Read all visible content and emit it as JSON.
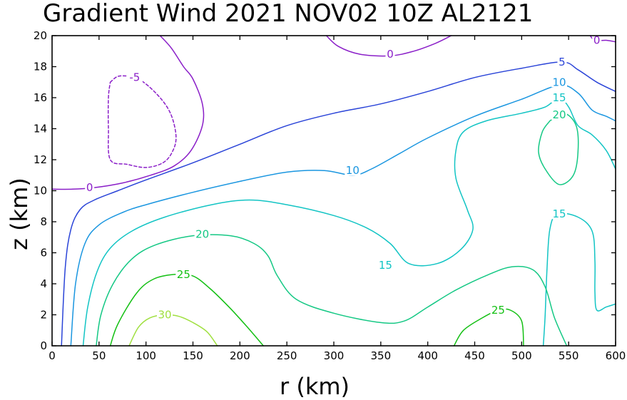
{
  "chart_data": {
    "type": "contour",
    "title": "Gradient Wind 2021 NOV02 10Z  AL2121",
    "xlabel": "r (km)",
    "ylabel": "z (km)",
    "xlim": [
      0,
      600
    ],
    "ylim": [
      0,
      20
    ],
    "xticks": [
      "0",
      "50",
      "100",
      "150",
      "200",
      "250",
      "300",
      "350",
      "400",
      "450",
      "500",
      "550",
      "600"
    ],
    "yticks": [
      "0",
      "2",
      "4",
      "6",
      "8",
      "10",
      "12",
      "14",
      "16",
      "18",
      "20"
    ],
    "grid": false,
    "colors": {
      "level_-5": "#8a1ec8",
      "level_0": "#8a1ec8",
      "level_5": "#2a44d8",
      "level_10": "#1a96e0",
      "level_15": "#12c4c4",
      "level_20": "#14c884",
      "level_25": "#14c014",
      "level_30": "#a0e040"
    },
    "contours": [
      {
        "level": -5,
        "label": "-5",
        "dashed": true,
        "color_key": "level_-5",
        "label_at": [
          88,
          17.3
        ],
        "points": [
          [
            62,
            17.0
          ],
          [
            72,
            17.4
          ],
          [
            92,
            17.2
          ],
          [
            112,
            16.2
          ],
          [
            126,
            15.0
          ],
          [
            132,
            13.5
          ],
          [
            128,
            12.5
          ],
          [
            118,
            11.8
          ],
          [
            100,
            11.5
          ],
          [
            80,
            11.7
          ],
          [
            62,
            12.0
          ],
          [
            60,
            14.0
          ],
          [
            60,
            16.0
          ],
          [
            62,
            17.0
          ]
        ]
      },
      {
        "level": 0,
        "label": "0",
        "dashed": false,
        "color_key": "level_0",
        "label_at": [
          40,
          10.2
        ],
        "points": [
          [
            0,
            10.1
          ],
          [
            22,
            10.1
          ],
          [
            45,
            10.2
          ],
          [
            75,
            10.5
          ],
          [
            105,
            11.0
          ],
          [
            130,
            11.6
          ],
          [
            148,
            12.6
          ],
          [
            160,
            14.2
          ],
          [
            160,
            15.6
          ],
          [
            150,
            17.2
          ],
          [
            140,
            18.0
          ],
          [
            127,
            19.2
          ],
          [
            115,
            20.0
          ]
        ]
      },
      {
        "level": 0,
        "label": "0",
        "dashed": false,
        "color_key": "level_0",
        "label_at": [
          360,
          18.8
        ],
        "points": [
          [
            292,
            20.0
          ],
          [
            305,
            19.3
          ],
          [
            328,
            18.8
          ],
          [
            360,
            18.7
          ],
          [
            385,
            19.0
          ],
          [
            408,
            19.5
          ],
          [
            425,
            20.0
          ]
        ]
      },
      {
        "level": 0,
        "label": "0",
        "dashed": false,
        "color_key": "level_0",
        "label_at": [
          580,
          19.7
        ],
        "points": [
          [
            573,
            20.0
          ],
          [
            578,
            19.7
          ],
          [
            590,
            19.7
          ],
          [
            600,
            19.6
          ]
        ]
      },
      {
        "level": 5,
        "label": "5",
        "dashed": false,
        "color_key": "level_5",
        "label_at": [
          543,
          18.3
        ],
        "points": [
          [
            10,
            0.0
          ],
          [
            14,
            5.0
          ],
          [
            20,
            7.5
          ],
          [
            30,
            8.8
          ],
          [
            45,
            9.4
          ],
          [
            70,
            10.0
          ],
          [
            100,
            10.7
          ],
          [
            150,
            11.8
          ],
          [
            200,
            13.0
          ],
          [
            250,
            14.2
          ],
          [
            300,
            15.0
          ],
          [
            350,
            15.6
          ],
          [
            400,
            16.4
          ],
          [
            450,
            17.3
          ],
          [
            500,
            17.9
          ],
          [
            543,
            18.3
          ],
          [
            560,
            17.8
          ],
          [
            580,
            17.0
          ],
          [
            600,
            16.4
          ]
        ]
      },
      {
        "level": 10,
        "label": "10",
        "dashed": false,
        "color_key": "level_10",
        "label_at": [
          540,
          17.0
        ],
        "points": [
          [
            20,
            0.0
          ],
          [
            25,
            4.0
          ],
          [
            35,
            6.6
          ],
          [
            50,
            7.8
          ],
          [
            75,
            8.6
          ],
          [
            100,
            9.1
          ],
          [
            150,
            9.9
          ],
          [
            200,
            10.6
          ],
          [
            250,
            11.2
          ],
          [
            290,
            11.3
          ],
          [
            320,
            11.0
          ],
          [
            340,
            11.4
          ],
          [
            370,
            12.4
          ],
          [
            400,
            13.4
          ],
          [
            450,
            14.8
          ],
          [
            500,
            15.9
          ],
          [
            540,
            16.8
          ],
          [
            560,
            16.3
          ],
          [
            575,
            15.2
          ],
          [
            590,
            14.8
          ],
          [
            600,
            14.5
          ]
        ]
      },
      {
        "level": 10,
        "label": "10",
        "dashed": false,
        "color_key": "level_10",
        "label_at": [
          320,
          11.3
        ],
        "points": []
      },
      {
        "level": 15,
        "label": "15",
        "dashed": false,
        "color_key": "level_15",
        "label_at": [
          540,
          16.0
        ],
        "points": [
          [
            33,
            0.0
          ],
          [
            38,
            2.5
          ],
          [
            48,
            4.8
          ],
          [
            62,
            6.3
          ],
          [
            85,
            7.4
          ],
          [
            120,
            8.3
          ],
          [
            170,
            9.1
          ],
          [
            210,
            9.4
          ],
          [
            250,
            9.1
          ],
          [
            300,
            8.4
          ],
          [
            335,
            7.6
          ],
          [
            360,
            6.6
          ],
          [
            380,
            5.3
          ],
          [
            410,
            5.3
          ],
          [
            435,
            6.2
          ],
          [
            448,
            7.5
          ],
          [
            442,
            8.8
          ],
          [
            430,
            10.8
          ],
          [
            430,
            12.6
          ],
          [
            438,
            13.8
          ],
          [
            462,
            14.5
          ],
          [
            500,
            15.0
          ],
          [
            525,
            15.4
          ],
          [
            540,
            16.0
          ],
          [
            550,
            15.4
          ],
          [
            560,
            14.2
          ],
          [
            575,
            13.6
          ],
          [
            590,
            12.6
          ],
          [
            600,
            11.4
          ]
        ]
      },
      {
        "level": 15,
        "label": "15",
        "dashed": false,
        "color_key": "level_15",
        "label_at": [
          355,
          5.2
        ],
        "points": []
      },
      {
        "level": 15,
        "label": "15",
        "dashed": false,
        "color_key": "level_15",
        "label_at": [
          540,
          8.5
        ],
        "points": [
          [
            523,
            0.0
          ],
          [
            525,
            2.0
          ],
          [
            527,
            5.0
          ],
          [
            530,
            7.5
          ],
          [
            538,
            8.5
          ],
          [
            560,
            8.3
          ],
          [
            575,
            7.4
          ],
          [
            578,
            5.5
          ],
          [
            578,
            3.5
          ],
          [
            580,
            2.3
          ],
          [
            590,
            2.5
          ],
          [
            600,
            2.7
          ]
        ]
      },
      {
        "level": 20,
        "label": "20",
        "dashed": false,
        "color_key": "level_20",
        "label_at": [
          160,
          7.2
        ],
        "points": [
          [
            47,
            0.0
          ],
          [
            52,
            2.0
          ],
          [
            65,
            4.0
          ],
          [
            85,
            5.6
          ],
          [
            110,
            6.5
          ],
          [
            150,
            7.1
          ],
          [
            190,
            7.1
          ],
          [
            215,
            6.6
          ],
          [
            230,
            5.8
          ],
          [
            240,
            4.5
          ],
          [
            260,
            3.0
          ],
          [
            300,
            2.1
          ],
          [
            350,
            1.5
          ],
          [
            375,
            1.6
          ],
          [
            400,
            2.5
          ],
          [
            430,
            3.6
          ],
          [
            465,
            4.6
          ],
          [
            490,
            5.1
          ],
          [
            512,
            4.9
          ],
          [
            525,
            3.8
          ],
          [
            535,
            1.8
          ],
          [
            548,
            0.0
          ]
        ]
      },
      {
        "level": 20,
        "label": "20",
        "dashed": false,
        "color_key": "level_20",
        "label_at": [
          540,
          14.9
        ],
        "points": [
          [
            530,
            14.5
          ],
          [
            545,
            15.0
          ],
          [
            558,
            14.2
          ],
          [
            560,
            12.5
          ],
          [
            555,
            11.0
          ],
          [
            540,
            10.4
          ],
          [
            525,
            11.4
          ],
          [
            518,
            12.5
          ],
          [
            522,
            13.8
          ],
          [
            530,
            14.5
          ]
        ]
      },
      {
        "level": 25,
        "label": "25",
        "dashed": false,
        "color_key": "level_25",
        "label_at": [
          140,
          4.6
        ],
        "points": [
          [
            62,
            0.0
          ],
          [
            70,
            1.4
          ],
          [
            90,
            3.4
          ],
          [
            108,
            4.3
          ],
          [
            130,
            4.6
          ],
          [
            150,
            4.5
          ],
          [
            168,
            3.7
          ],
          [
            190,
            2.4
          ],
          [
            208,
            1.2
          ],
          [
            225,
            0.0
          ]
        ]
      },
      {
        "level": 25,
        "label": "25",
        "dashed": false,
        "color_key": "level_25",
        "label_at": [
          475,
          2.3
        ],
        "points": [
          [
            428,
            0.0
          ],
          [
            438,
            1.0
          ],
          [
            458,
            1.8
          ],
          [
            475,
            2.3
          ],
          [
            488,
            2.3
          ],
          [
            500,
            1.6
          ],
          [
            502,
            0.0
          ]
        ]
      },
      {
        "level": 30,
        "label": "30",
        "dashed": false,
        "color_key": "level_30",
        "label_at": [
          120,
          2.0
        ],
        "points": [
          [
            82,
            0.0
          ],
          [
            92,
            1.2
          ],
          [
            104,
            1.8
          ],
          [
            120,
            2.0
          ],
          [
            135,
            1.9
          ],
          [
            150,
            1.5
          ],
          [
            165,
            0.9
          ],
          [
            176,
            0.0
          ]
        ]
      }
    ]
  }
}
